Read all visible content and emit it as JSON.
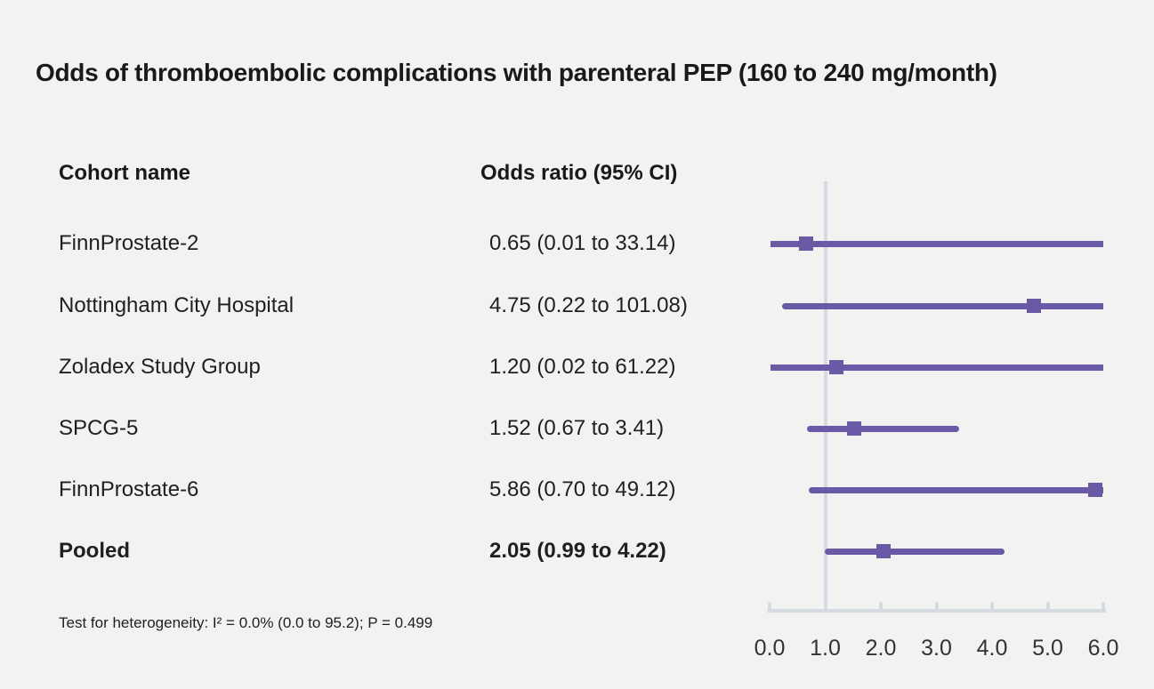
{
  "title": "Odds of thromboembolic complications with parenteral PEP (160 to 240 mg/month)",
  "columns": {
    "cohort": "Cohort name",
    "odds_ratio": "Odds ratio (95% CI)"
  },
  "footnote": "Test for heterogeneity: I² = 0.0% (0.0 to 95.2); P = 0.499",
  "colors": {
    "background": "#f2f2f1",
    "accent": "#6a5aa6",
    "axis": "#d6dae1",
    "text": "#1f1f1f"
  },
  "chart_data": {
    "type": "forest",
    "title": "Odds of thromboembolic complications with parenteral PEP (160 to 240 mg/month)",
    "xlim": [
      0,
      6
    ],
    "x_ticks": [
      "0.0",
      "1.0",
      "2.0",
      "3.0",
      "4.0",
      "5.0",
      "6.0"
    ],
    "ref_line": 1.0,
    "grid": false,
    "rows": [
      {
        "cohort": "FinnProstate-2",
        "label": "0.65 (0.01 to 33.14)",
        "or": 0.65,
        "lo": 0.01,
        "hi": 33.14,
        "bold": false
      },
      {
        "cohort": "Nottingham City Hospital",
        "label": "4.75 (0.22 to 101.08)",
        "or": 4.75,
        "lo": 0.22,
        "hi": 101.08,
        "bold": false
      },
      {
        "cohort": "Zoladex Study Group",
        "label": "1.20 (0.02 to 61.22)",
        "or": 1.2,
        "lo": 0.02,
        "hi": 61.22,
        "bold": false
      },
      {
        "cohort": "SPCG-5",
        "label": "1.52 (0.67 to 3.41)",
        "or": 1.52,
        "lo": 0.67,
        "hi": 3.41,
        "bold": false
      },
      {
        "cohort": "FinnProstate-6",
        "label": "5.86 (0.70 to 49.12)",
        "or": 5.86,
        "lo": 0.7,
        "hi": 49.12,
        "bold": false
      },
      {
        "cohort": "Pooled",
        "label": "2.05 (0.99 to 4.22)",
        "or": 2.05,
        "lo": 0.99,
        "hi": 4.22,
        "bold": true
      }
    ]
  }
}
